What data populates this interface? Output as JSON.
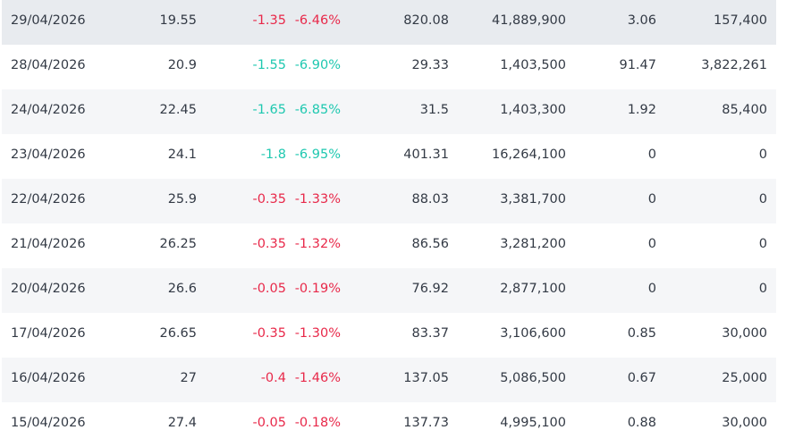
{
  "table": {
    "rows": [
      [
        "29/04/2026",
        "19.55",
        "-1.35",
        "-6.46%",
        "820.08",
        "41,889,900",
        "3.06",
        "157,400"
      ],
      [
        "28/04/2026",
        "20.9",
        "-1.55",
        "-6.90%",
        "29.33",
        "1,403,500",
        "91.47",
        "3,822,261"
      ],
      [
        "24/04/2026",
        "22.45",
        "-1.65",
        "-6.85%",
        "31.5",
        "1,403,300",
        "1.92",
        "85,400"
      ],
      [
        "23/04/2026",
        "24.1",
        "-1.8",
        "-6.95%",
        "401.31",
        "16,264,100",
        "0",
        "0"
      ],
      [
        "22/04/2026",
        "25.9",
        "-0.35",
        "-1.33%",
        "88.03",
        "3,381,700",
        "0",
        "0"
      ],
      [
        "21/04/2026",
        "26.25",
        "-0.35",
        "-1.32%",
        "86.56",
        "3,281,200",
        "0",
        "0"
      ],
      [
        "20/04/2026",
        "26.6",
        "-0.05",
        "-0.19%",
        "76.92",
        "2,877,100",
        "0",
        "0"
      ],
      [
        "17/04/2026",
        "26.65",
        "-0.35",
        "-1.30%",
        "83.37",
        "3,106,600",
        "0.85",
        "30,000"
      ],
      [
        "16/04/2026",
        "27",
        "-0.4",
        "-1.46%",
        "137.05",
        "5,086,500",
        "0.67",
        "25,000"
      ],
      [
        "15/04/2026",
        "27.4",
        "-0.05",
        "-0.18%",
        "137.73",
        "4,995,100",
        "0.88",
        "30,000"
      ]
    ],
    "change_colors": [
      "#e8294a",
      "#1fc8b0",
      "#1fc8b0",
      "#1fc8b0",
      "#e8294a",
      "#e8294a",
      "#e8294a",
      "#e8294a",
      "#e8294a",
      "#e8294a"
    ],
    "highlight_row": 0
  }
}
